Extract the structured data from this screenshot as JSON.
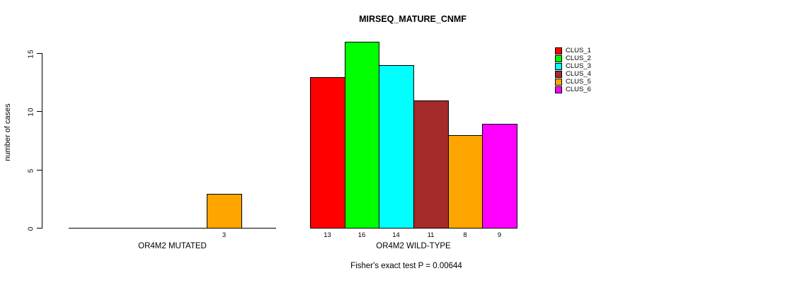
{
  "chart_data": {
    "type": "bar",
    "title": "MIRSEQ_MATURE_CNMF",
    "ylabel": "number of cases",
    "xlabel": "",
    "yticks": [
      0,
      5,
      10,
      15
    ],
    "ylim": [
      0,
      16
    ],
    "grid": false,
    "legend_position": "top-right",
    "clusters": [
      {
        "label": "CLUS_1",
        "color": "#FF0000"
      },
      {
        "label": "CLUS_2",
        "color": "#00FF00"
      },
      {
        "label": "CLUS_3",
        "color": "#00FFFF"
      },
      {
        "label": "CLUS_4",
        "color": "#A52A2A"
      },
      {
        "label": "CLUS_5",
        "color": "#FFA500"
      },
      {
        "label": "CLUS_6",
        "color": "#FF00FF"
      }
    ],
    "groups": [
      {
        "label": "OR4M2 MUTATED",
        "values": [
          0,
          0,
          0,
          0,
          3,
          0
        ]
      },
      {
        "label": "OR4M2 WILD-TYPE",
        "values": [
          13,
          16,
          14,
          11,
          8,
          9
        ]
      }
    ],
    "footnote": "Fisher's exact test P = 0.00644"
  }
}
